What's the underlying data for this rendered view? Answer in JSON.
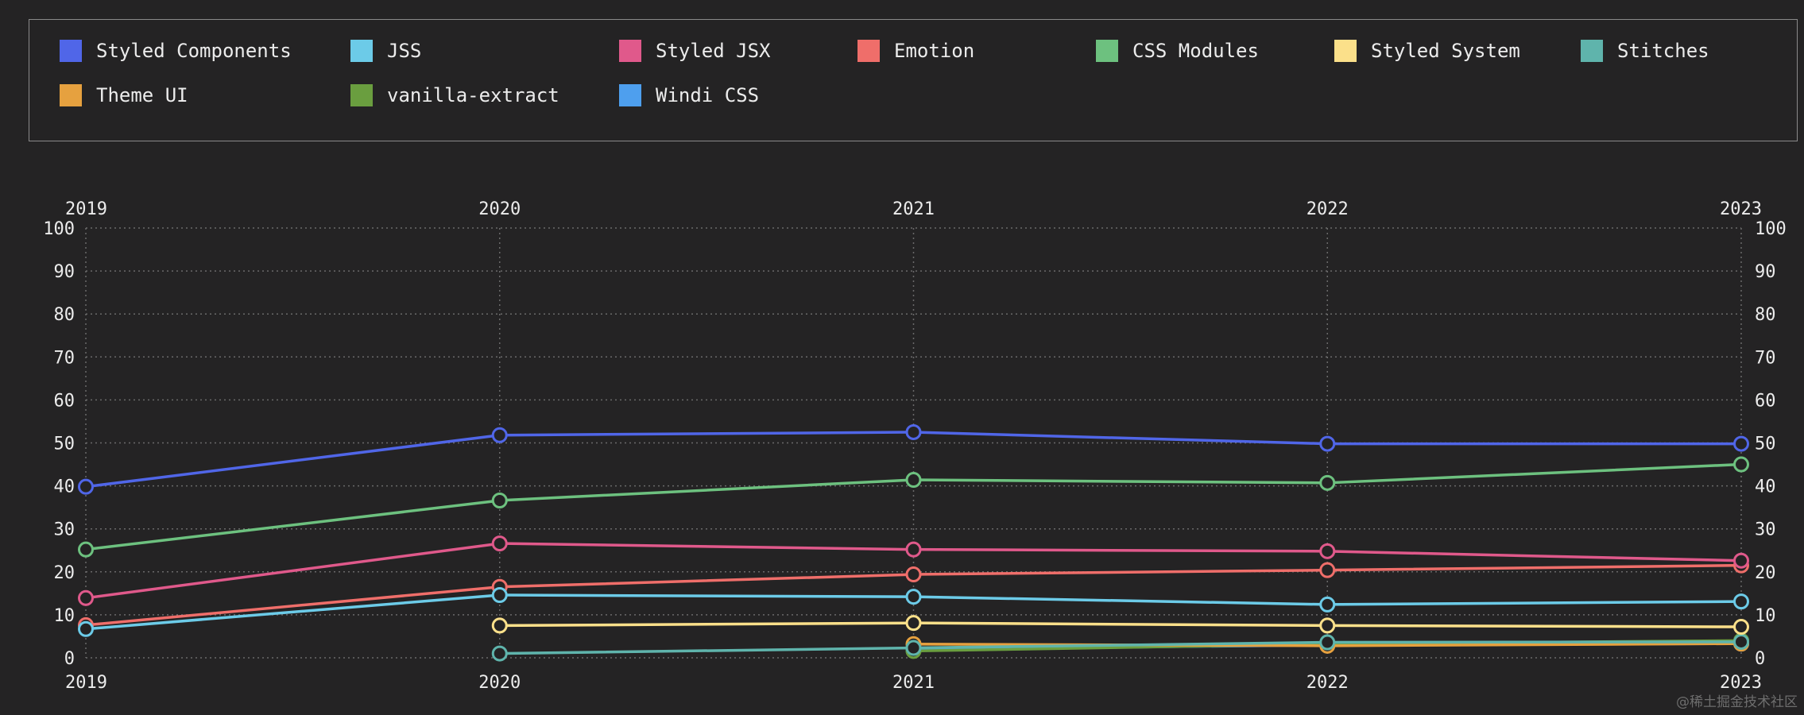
{
  "chart_data": {
    "type": "line",
    "x": [
      "2019",
      "2020",
      "2021",
      "2022",
      "2023"
    ],
    "ylim": [
      0,
      100
    ],
    "yticks": [
      0,
      10,
      20,
      30,
      40,
      50,
      60,
      70,
      80,
      90,
      100
    ],
    "grid": true,
    "legend_position": "top",
    "series": [
      {
        "name": "Styled Components",
        "color": "#5066e8",
        "values": [
          39.8,
          51.8,
          52.5,
          49.8,
          49.8
        ]
      },
      {
        "name": "JSS",
        "color": "#6ccbe8",
        "values": [
          6.7,
          14.6,
          14.2,
          12.4,
          13.1
        ]
      },
      {
        "name": "Styled JSX",
        "color": "#e0598b",
        "values": [
          13.9,
          26.6,
          25.2,
          24.8,
          22.6
        ]
      },
      {
        "name": "Emotion",
        "color": "#ef6e6a",
        "values": [
          7.6,
          16.5,
          19.4,
          20.4,
          21.5
        ]
      },
      {
        "name": "CSS Modules",
        "color": "#6dc17f",
        "values": [
          25.2,
          36.6,
          41.4,
          40.7,
          45.0
        ]
      },
      {
        "name": "Styled System",
        "color": "#fbe08a",
        "values": [
          null,
          7.5,
          8.1,
          7.5,
          7.2
        ]
      },
      {
        "name": "Stitches",
        "color": "#5fb4ac",
        "values": [
          null,
          1.0,
          2.3,
          3.6,
          3.7
        ]
      },
      {
        "name": "Theme UI",
        "color": "#e6a13f",
        "values": [
          null,
          null,
          3.2,
          2.8,
          3.3
        ]
      },
      {
        "name": "vanilla-extract",
        "color": "#6a9e3f",
        "values": [
          null,
          null,
          1.6,
          3.2,
          4.0
        ]
      },
      {
        "name": "Windi CSS",
        "color": "#4e9fee",
        "values": [
          null,
          null,
          1.9,
          3.0,
          3.3
        ]
      }
    ]
  },
  "watermark": "@稀土掘金技术社区"
}
